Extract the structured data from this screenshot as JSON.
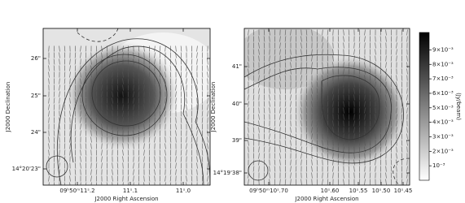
{
  "panels": [
    {
      "xlabel": "J2000 Right Ascension",
      "ylabel": "J2000 Declination",
      "x_tick_labels": [
        "09ʰ50ᵐ11ˢ.2",
        "11ˢ.1",
        "11ˢ.0"
      ],
      "y_tick_labels": [
        "26\"",
        "25\"",
        "24\"",
        "14°20'23\""
      ]
    },
    {
      "xlabel": "J2000 Right Ascension",
      "ylabel": "J2000 Declination",
      "x_tick_labels": [
        "09ʰ50ᵐ10ˢ.70",
        "10ˢ.60",
        "10ˢ.55",
        "10ˢ.50",
        "10ˢ.45"
      ],
      "y_tick_labels": [
        "41\"",
        "40\"",
        "39\"",
        "14°19'38\""
      ]
    }
  ],
  "colorbar": {
    "label": "(Jy/beam)",
    "lim": [
      0,
      0.0102
    ],
    "ticks": [
      {
        "value": 0.009,
        "label": "9×10⁻³"
      },
      {
        "value": 0.008,
        "label": "8×10⁻³"
      },
      {
        "value": 0.007,
        "label": "7×10⁻³"
      },
      {
        "value": 0.006,
        "label": "6×10⁻³"
      },
      {
        "value": 0.005,
        "label": "5×10⁻³"
      },
      {
        "value": 0.004,
        "label": "4×10⁻³"
      },
      {
        "value": 0.003,
        "label": "3×10⁻³"
      },
      {
        "value": 0.002,
        "label": "2×10⁻³"
      },
      {
        "value": 0.001,
        "label": "10⁻³"
      }
    ]
  }
}
